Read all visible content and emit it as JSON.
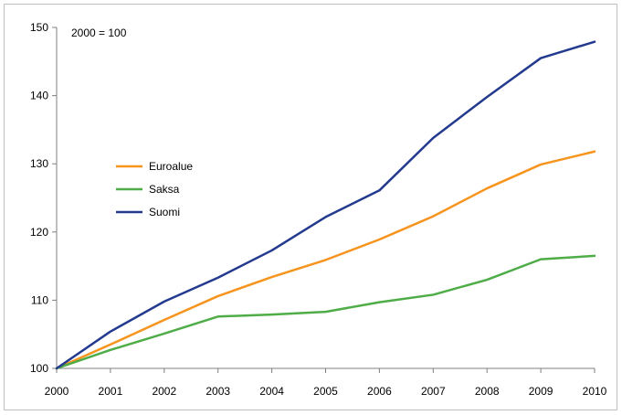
{
  "chart_data": {
    "type": "line",
    "annotation": "2000 = 100",
    "x": [
      "2000",
      "2001",
      "2002",
      "2003",
      "2004",
      "2005",
      "2006",
      "2007",
      "2008",
      "2009",
      "2010"
    ],
    "ylim": [
      100,
      150
    ],
    "yticks": [
      "100",
      "110",
      "120",
      "130",
      "140",
      "150"
    ],
    "grid": false,
    "legend_position": "left-middle",
    "series": [
      {
        "name": "Euroalue",
        "color": "#f7941d",
        "values": [
          100,
          103.5,
          107.1,
          110.6,
          113.4,
          115.9,
          118.9,
          122.3,
          126.4,
          129.9,
          131.8
        ]
      },
      {
        "name": "Saksa",
        "color": "#4fad48",
        "values": [
          100,
          102.7,
          105.1,
          107.6,
          107.9,
          108.3,
          109.7,
          110.8,
          113.0,
          116.0,
          116.5
        ]
      },
      {
        "name": "Suomi",
        "color": "#233a8f",
        "values": [
          100,
          105.4,
          109.8,
          113.3,
          117.3,
          122.2,
          126.1,
          133.8,
          139.8,
          145.5,
          147.9
        ]
      }
    ]
  }
}
